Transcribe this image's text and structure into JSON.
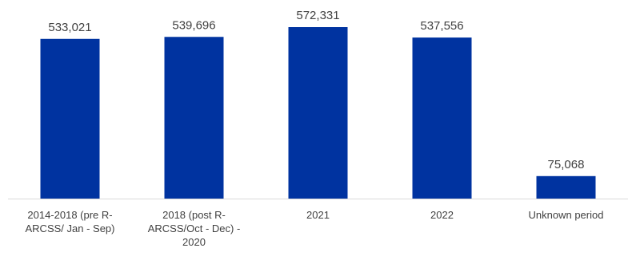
{
  "chart_data": {
    "type": "bar",
    "categories": [
      [
        "2014-2018 (pre R-",
        "ARCSS/ Jan - Sep)"
      ],
      [
        "2018 (post R-",
        "ARCSS/Oct - Dec) -",
        "2020"
      ],
      [
        "2021"
      ],
      [
        "2022"
      ],
      [
        "Unknown period"
      ]
    ],
    "values": [
      533021,
      539696,
      572331,
      537556,
      75068
    ],
    "value_labels": [
      "533,021",
      "539,696",
      "572,331",
      "537,556",
      "75,068"
    ],
    "ylim": [
      0,
      600000
    ],
    "grid": false,
    "bar_color": "#0033a0",
    "axis_color": "#d9d9d9"
  }
}
